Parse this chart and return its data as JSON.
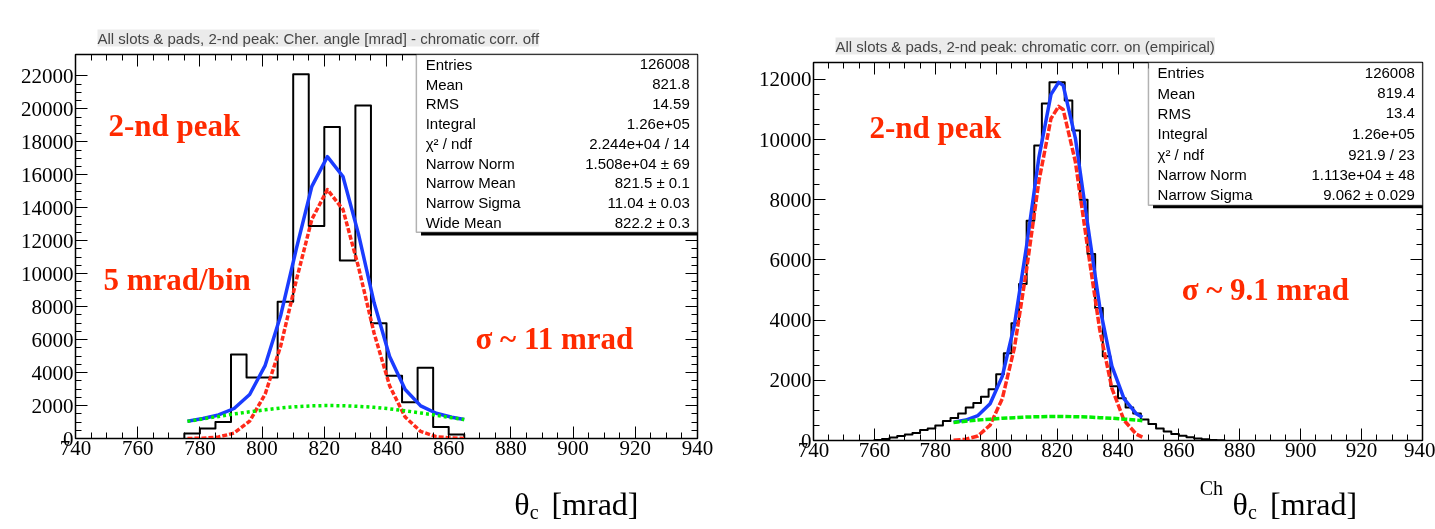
{
  "chart_data": [
    {
      "type": "histogram",
      "title": "All slots & pads, 2-nd peak: Cher. angle [mrad] - chromatic corr. off",
      "xlabel": "θ$_{c}$ [mrad]",
      "bins": [
        775,
        780,
        785,
        790,
        795,
        800,
        805,
        810,
        815,
        820,
        825,
        830,
        835,
        840,
        845,
        850,
        855,
        860,
        865
      ],
      "values": [
        300,
        600,
        1000,
        5100,
        3700,
        3700,
        8300,
        22100,
        12900,
        18900,
        10800,
        20200,
        7000,
        3800,
        2200,
        4300,
        700,
        250
      ],
      "series": [
        {
          "type": "line",
          "line_style": "solid",
          "color": "#1a3cff",
          "x": [
            776,
            781,
            786,
            791,
            796,
            801,
            806,
            811,
            816,
            821,
            826,
            831,
            836,
            841,
            846,
            851,
            856,
            861,
            865
          ],
          "values": [
            1050,
            1210,
            1430,
            1820,
            2670,
            4440,
            7480,
            11500,
            15300,
            17100,
            15900,
            12400,
            8250,
            4970,
            2970,
            1980,
            1530,
            1290,
            1150
          ]
        },
        {
          "type": "line",
          "line_style": "dotted",
          "color": "#ff2a1a",
          "x": [
            776,
            781,
            786,
            791,
            796,
            801,
            806,
            811,
            816,
            821,
            826,
            831,
            836,
            841,
            846,
            851,
            856,
            861,
            865
          ],
          "values": [
            0,
            20,
            90,
            330,
            1050,
            2700,
            5630,
            9600,
            13300,
            15100,
            13900,
            10400,
            6400,
            3200,
            1300,
            430,
            110,
            30,
            0
          ]
        },
        {
          "type": "line",
          "line_style": "dotted",
          "color": "#00ee00",
          "x": [
            776,
            781,
            786,
            791,
            796,
            801,
            806,
            811,
            816,
            821,
            826,
            831,
            836,
            841,
            846,
            851,
            856,
            861,
            865
          ],
          "values": [
            1040,
            1190,
            1340,
            1490,
            1620,
            1740,
            1850,
            1930,
            1980,
            2000,
            1990,
            1950,
            1890,
            1800,
            1680,
            1550,
            1410,
            1260,
            1150
          ]
        }
      ],
      "xlim": [
        740,
        940
      ],
      "ylim": [
        0,
        23300
      ],
      "xticks": [
        740,
        760,
        780,
        800,
        820,
        840,
        860,
        880,
        900,
        920,
        940
      ],
      "yticks": [
        0,
        2000,
        4000,
        6000,
        8000,
        10000,
        12000,
        14000,
        16000,
        18000,
        20000,
        22000
      ],
      "annotations": [
        "2-nd peak",
        "5 mrad/bin",
        "σ ~ 11 mrad",
        "Entries 126008",
        "Mean 821.8",
        "RMS 14.59",
        "Integral 1.26e+05",
        "χ² / ndf 2.244e+04 / 14",
        "Narrow Norm 1.508e+04 ± 69",
        "Narrow Mean 821.5 ± 0.1",
        "Narrow Sigma 11.04 ± 0.03",
        "Wide Mean 822.2 ± 0.3"
      ]
    },
    {
      "type": "histogram",
      "title": "All slots & pads, 2-nd peak: chromatic corr. on (empirical)",
      "xlabel": "$^{Ch}$ θ$_{c}$ [mrad]",
      "bins": [
        760,
        762.5,
        765,
        767.5,
        770,
        772.5,
        775,
        777.5,
        780,
        782.5,
        785,
        787.5,
        790,
        792.5,
        795,
        797.5,
        800,
        802.5,
        805,
        807.5,
        810,
        812.5,
        815,
        817.5,
        820,
        822.5,
        825,
        827.5,
        830,
        832.5,
        835,
        837.5,
        840,
        842.5,
        845,
        847.5,
        850,
        852.5,
        855,
        857.5,
        860,
        862.5,
        865,
        867.5,
        870,
        872.5,
        875
      ],
      "values": [
        20,
        50,
        100,
        150,
        200,
        250,
        350,
        400,
        500,
        650,
        750,
        900,
        1100,
        1250,
        1450,
        1700,
        2200,
        2900,
        3900,
        5200,
        7300,
        9800,
        11200,
        11900,
        11900,
        11300,
        10300,
        8000,
        6200,
        4400,
        2800,
        1800,
        1400,
        1100,
        900,
        700,
        550,
        400,
        300,
        220,
        160,
        110,
        70,
        40,
        20,
        10
      ],
      "series": [
        {
          "type": "line",
          "line_style": "solid",
          "color": "#1a3cff",
          "x": [
            786,
            790,
            794,
            798,
            802,
            806,
            810,
            814,
            818,
            820.5,
            822,
            826,
            830,
            834,
            838,
            842,
            846,
            848
          ],
          "values": [
            610,
            680,
            830,
            1220,
            2130,
            3850,
            6480,
            9390,
            11500,
            11900,
            11800,
            10050,
            7200,
            4440,
            2470,
            1380,
            890,
            770
          ]
        },
        {
          "type": "line",
          "line_style": "dotted",
          "color": "#ff2a1a",
          "x": [
            786,
            790,
            794,
            798,
            802,
            806,
            810,
            814,
            818,
            820.5,
            822,
            826,
            830,
            834,
            838,
            842,
            846,
            848
          ],
          "values": [
            10,
            40,
            150,
            510,
            1390,
            3090,
            5700,
            8600,
            10700,
            11100,
            11000,
            9260,
            6420,
            3680,
            1730,
            670,
            210,
            110
          ]
        },
        {
          "type": "line",
          "line_style": "dotted",
          "color": "#00ee00",
          "x": [
            786,
            790,
            794,
            798,
            802,
            806,
            810,
            814,
            818,
            820.5,
            822,
            826,
            830,
            834,
            838,
            842,
            846,
            848
          ],
          "values": [
            600,
            640,
            680,
            710,
            740,
            760,
            780,
            790,
            800,
            800,
            800,
            790,
            780,
            760,
            740,
            710,
            680,
            660
          ]
        }
      ],
      "xlim": [
        740,
        940
      ],
      "ylim": [
        0,
        12560
      ],
      "xticks": [
        740,
        760,
        780,
        800,
        820,
        840,
        860,
        880,
        900,
        920,
        940
      ],
      "yticks": [
        0,
        2000,
        4000,
        6000,
        8000,
        10000,
        12000
      ],
      "annotations": [
        "2-nd peak",
        "σ ~ 9.1 mrad",
        "Entries 126008",
        "Mean 819.4",
        "RMS 13.4",
        "Integral 1.26e+05",
        "χ² / ndf 921.9 / 23",
        "Narrow Norm 1.113e+04 ± 48",
        "Narrow Sigma 9.062 ± 0.029"
      ]
    }
  ]
}
